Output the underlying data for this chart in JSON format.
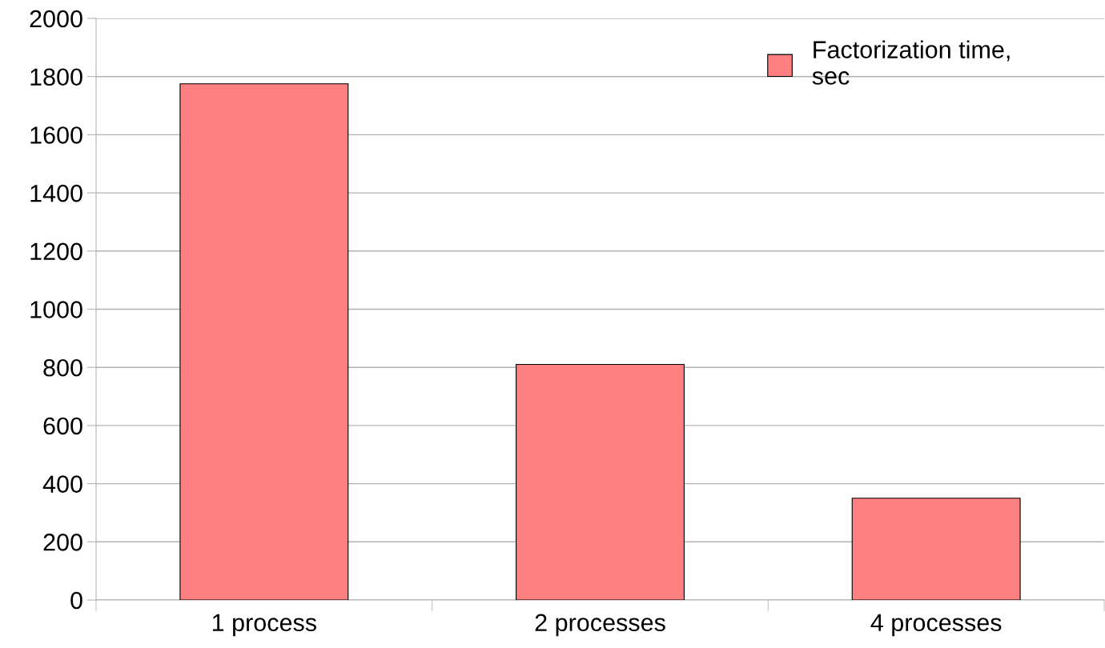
{
  "chart_data": {
    "type": "bar",
    "categories": [
      "1 process",
      "2 processes",
      "4 processes"
    ],
    "series": [
      {
        "name": "Factorization time,\nsec",
        "color": "#ff8080",
        "values": [
          1775,
          810,
          350
        ]
      }
    ],
    "ylim": [
      0,
      2000
    ],
    "yticks": [
      0,
      200,
      400,
      600,
      800,
      1000,
      1200,
      1400,
      1600,
      1800,
      2000
    ],
    "grid": "y",
    "legend": "top right"
  }
}
